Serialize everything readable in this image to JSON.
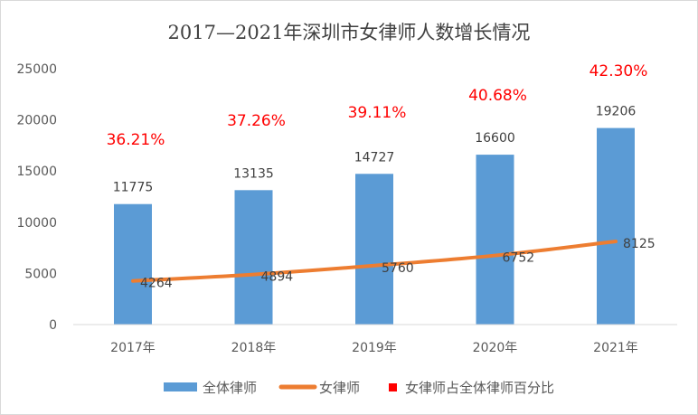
{
  "chart_data": {
    "type": "bar",
    "title": "2017—2021年深圳市女律师人数增长情况",
    "categories": [
      "2017年",
      "2018年",
      "2019年",
      "2020年",
      "2021年"
    ],
    "ylim": [
      0,
      25000
    ],
    "yticks": [
      0,
      5000,
      10000,
      15000,
      20000,
      25000
    ],
    "grid": false,
    "legend": "bottom",
    "series": [
      {
        "name": "全体律师",
        "type": "bar",
        "color": "#5b9bd5",
        "values": [
          11775,
          13135,
          14727,
          16600,
          19206
        ]
      },
      {
        "name": "女律师",
        "type": "line",
        "color": "#ed7d31",
        "values": [
          4264,
          4894,
          5760,
          6752,
          8125
        ]
      },
      {
        "name": "女律师占全体律师百分比",
        "type": "label",
        "color": "#ff0000",
        "values": [
          "36.21%",
          "37.26%",
          "39.11%",
          "40.68%",
          "42.30%"
        ]
      }
    ]
  }
}
